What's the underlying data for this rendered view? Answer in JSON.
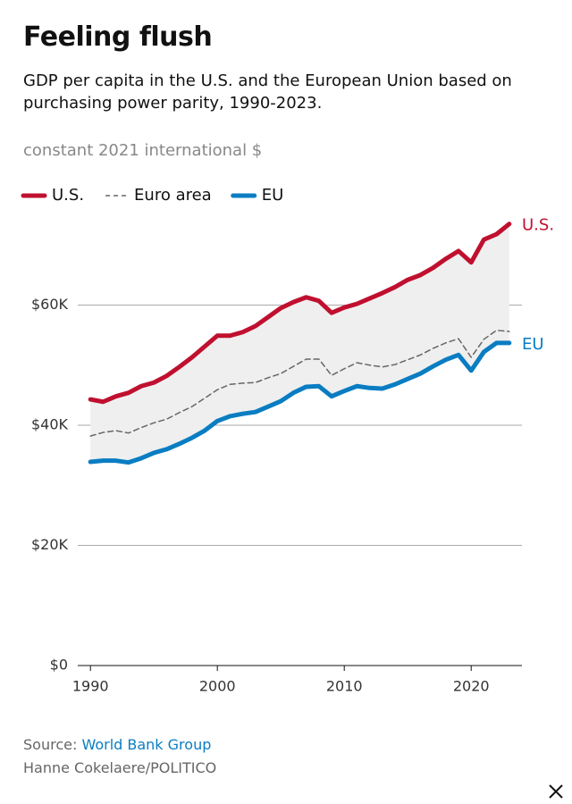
{
  "chart_data": {
    "type": "line",
    "title": "Feeling flush",
    "subtitle": "GDP per capita in the U.S. and the European Union based on purchasing power parity, 1990-2023.",
    "y_label": "constant 2021 international $",
    "x": [
      1990,
      1991,
      1992,
      1993,
      1994,
      1995,
      1996,
      1997,
      1998,
      1999,
      2000,
      2001,
      2002,
      2003,
      2004,
      2005,
      2006,
      2007,
      2008,
      2009,
      2010,
      2011,
      2012,
      2013,
      2014,
      2015,
      2016,
      2017,
      2018,
      2019,
      2020,
      2021,
      2022,
      2023
    ],
    "series": [
      {
        "name": "U.S.",
        "color": "#c0102f",
        "dashed": false,
        "values": [
          44300,
          43900,
          44800,
          45400,
          46500,
          47100,
          48200,
          49700,
          51300,
          53100,
          54900,
          54900,
          55500,
          56500,
          58000,
          59500,
          60500,
          61300,
          60700,
          58700,
          59600,
          60200,
          61100,
          62000,
          63000,
          64200,
          65000,
          66200,
          67700,
          69000,
          67100,
          70900,
          71800,
          73500
        ]
      },
      {
        "name": "Euro area",
        "color": "#666666",
        "dashed": true,
        "values": [
          38200,
          38800,
          39100,
          38700,
          39600,
          40400,
          41000,
          42100,
          43100,
          44500,
          45900,
          46800,
          47000,
          47100,
          47900,
          48600,
          49800,
          51000,
          51000,
          48300,
          49400,
          50400,
          50000,
          49700,
          50100,
          50900,
          51700,
          52800,
          53700,
          54400,
          51300,
          54300,
          55800,
          55600
        ]
      },
      {
        "name": "EU",
        "color": "#0a7dc2",
        "dashed": false,
        "values": [
          33900,
          34100,
          34100,
          33800,
          34500,
          35400,
          36000,
          36900,
          37900,
          39100,
          40700,
          41500,
          41900,
          42200,
          43100,
          44000,
          45400,
          46400,
          46500,
          44800,
          45700,
          46500,
          46200,
          46100,
          46800,
          47700,
          48600,
          49800,
          50900,
          51700,
          49100,
          52200,
          53700,
          53700
        ]
      }
    ],
    "xlim": [
      1989,
      2024
    ],
    "ylim": [
      0,
      75000
    ],
    "xticks": [
      1990,
      2000,
      2010,
      2020
    ],
    "yticks": [
      {
        "value": 0,
        "label": "$0"
      },
      {
        "value": 20000,
        "label": "$20K"
      },
      {
        "value": 40000,
        "label": "$40K"
      },
      {
        "value": 60000,
        "label": "$60K"
      }
    ],
    "grid": true,
    "source_label": "Source:",
    "source": "World Bank Group",
    "credit": "Hanne Cokelaere/POLITICO"
  }
}
